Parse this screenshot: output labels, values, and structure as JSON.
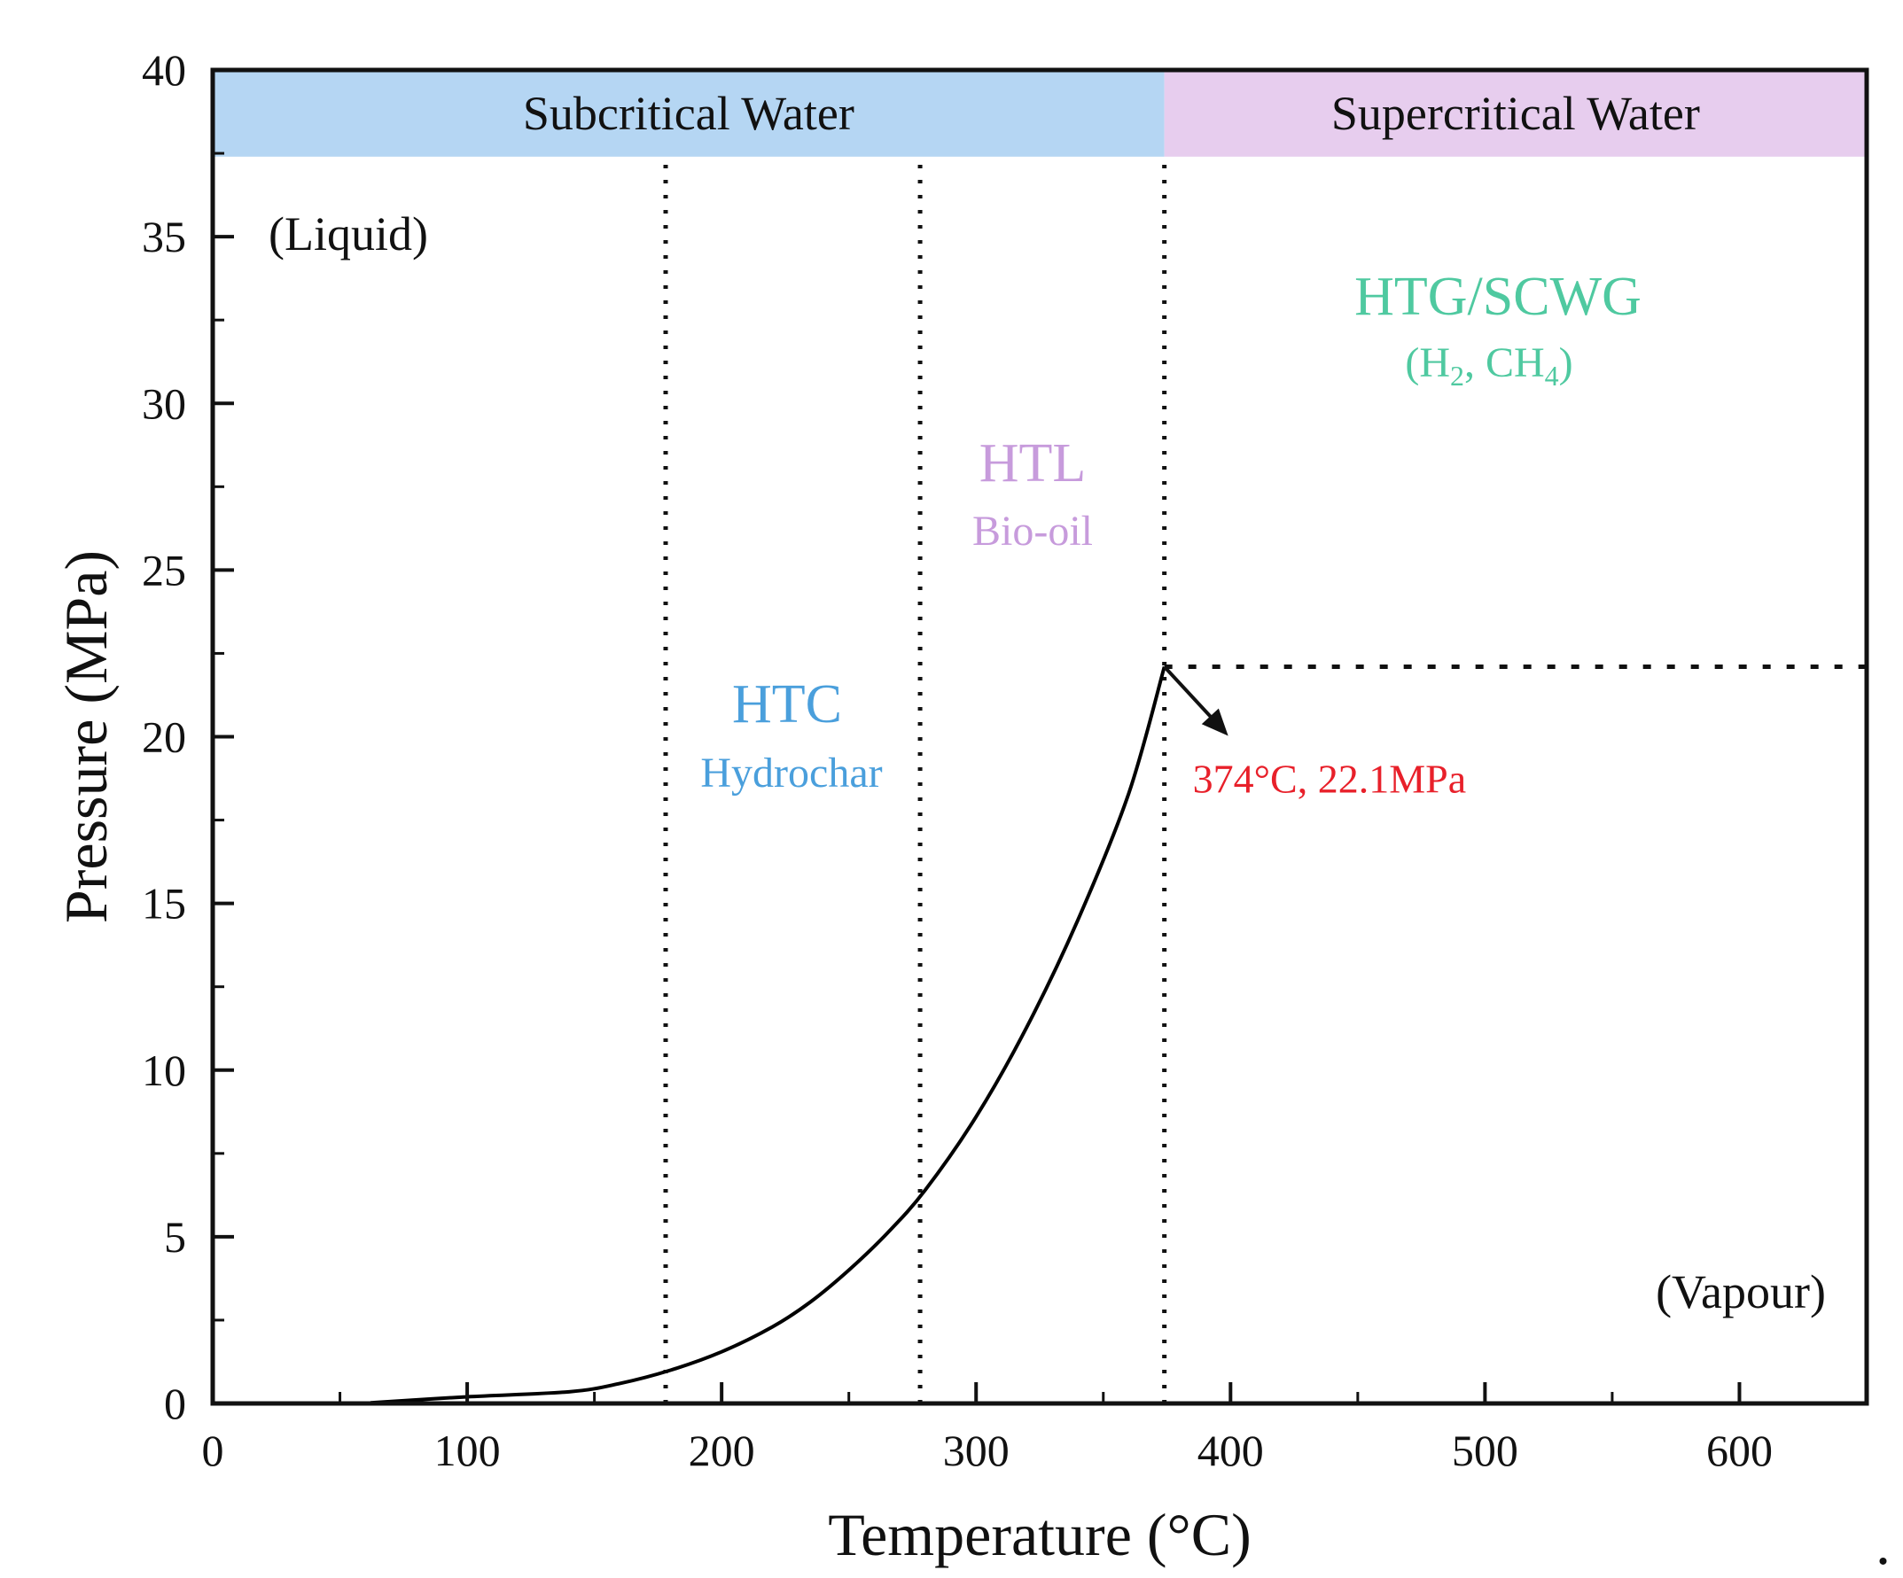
{
  "chart_data": {
    "type": "line",
    "xlabel": "Temperature (°C)",
    "ylabel": "Pressure (MPa)",
    "xlim": [
      0,
      650
    ],
    "ylim": [
      0,
      40
    ],
    "xticks": [
      0,
      100,
      200,
      300,
      400,
      500,
      600
    ],
    "yticks": [
      0,
      5,
      10,
      15,
      20,
      25,
      30,
      35,
      40
    ],
    "grid": false,
    "series": [
      {
        "name": "Vapour pressure curve",
        "x": [
          62,
          100,
          140,
          160,
          180,
          200,
          220,
          235,
          250,
          265,
          280,
          300,
          320,
          340,
          360,
          374
        ],
        "y": [
          0.02,
          0.2,
          0.35,
          0.6,
          1.0,
          1.55,
          2.3,
          3.05,
          4.0,
          5.1,
          6.4,
          8.6,
          11.3,
          14.5,
          18.3,
          22.1
        ]
      }
    ],
    "dividers": [
      {
        "name": "HTC lower bound",
        "x": 178
      },
      {
        "name": "HTC/HTL boundary",
        "x": 278
      },
      {
        "name": "Critical temperature",
        "x": 374
      }
    ],
    "critical_pressure_line": {
      "y": 22.1,
      "x_from": 374,
      "x_to": 650
    },
    "bands": [
      {
        "label": "Subcritical Water",
        "x_from": 0,
        "x_to": 374,
        "y_from": 37.4,
        "y_to": 40,
        "color": "#b5d6f3"
      },
      {
        "label": "Supercritical Water",
        "x_from": 374,
        "x_to": 650,
        "y_from": 37.4,
        "y_to": 40,
        "color": "#e7cdee"
      }
    ],
    "phase_labels": {
      "liquid": "(Liquid)",
      "vapour": "(Vapour)"
    },
    "regions": [
      {
        "name": "htc",
        "title": "HTC",
        "subtitle": "Hydrochar",
        "color": "#4a9fdc"
      },
      {
        "name": "htl",
        "title": "HTL",
        "subtitle": "Bio-oil",
        "color": "#c79bdc"
      },
      {
        "name": "htg",
        "title": "HTG/SCWG",
        "subtitle_parts": [
          "(H",
          "2",
          ", CH",
          "4",
          ")"
        ],
        "color": "#4fc9a0"
      }
    ],
    "critical_point": {
      "x": 374,
      "y": 22.1,
      "label": "374°C, 22.1MPa",
      "color": "#e8202a"
    }
  }
}
